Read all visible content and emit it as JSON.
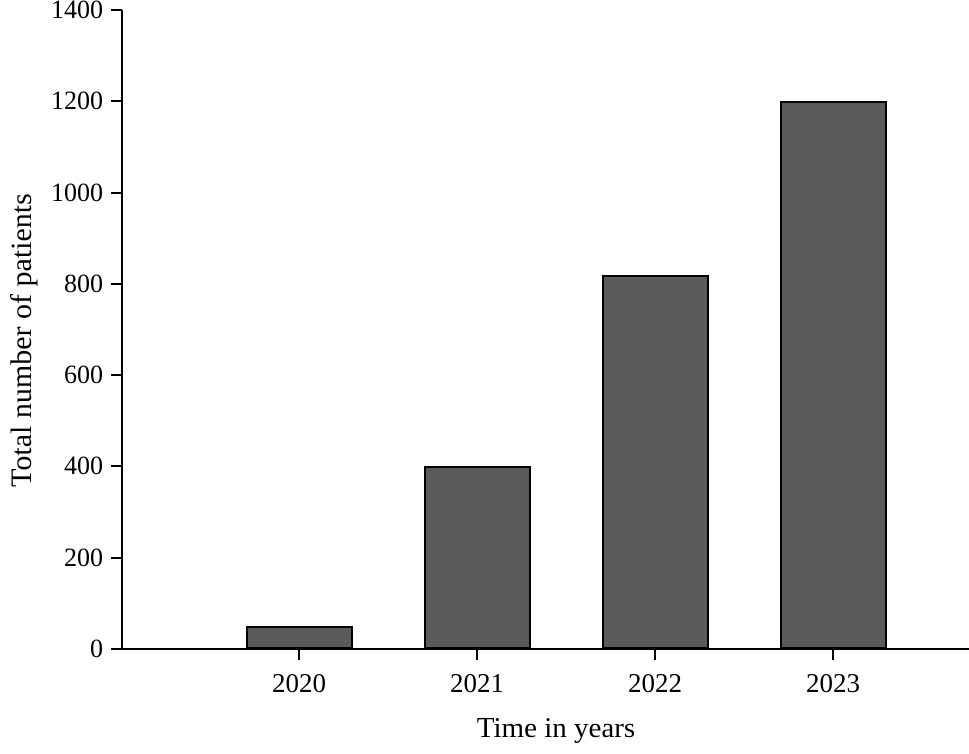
{
  "figure": {
    "background_color": "#ffffff",
    "axis_color": "#000000",
    "text_color": "#000000"
  },
  "chart_data": {
    "type": "bar",
    "title": "",
    "categories": [
      "2020",
      "2021",
      "2022",
      "2023"
    ],
    "values": [
      50,
      400,
      820,
      1200
    ],
    "xlabel": "Time in years",
    "ylabel": "Total number of patients",
    "ylim": [
      0,
      1400
    ],
    "yticks": [
      0,
      200,
      400,
      600,
      800,
      1000,
      1200,
      1400
    ],
    "bar_color": "#5B5B5B",
    "bar_border_color": "#000000",
    "grid": false,
    "legend_position": "none"
  }
}
